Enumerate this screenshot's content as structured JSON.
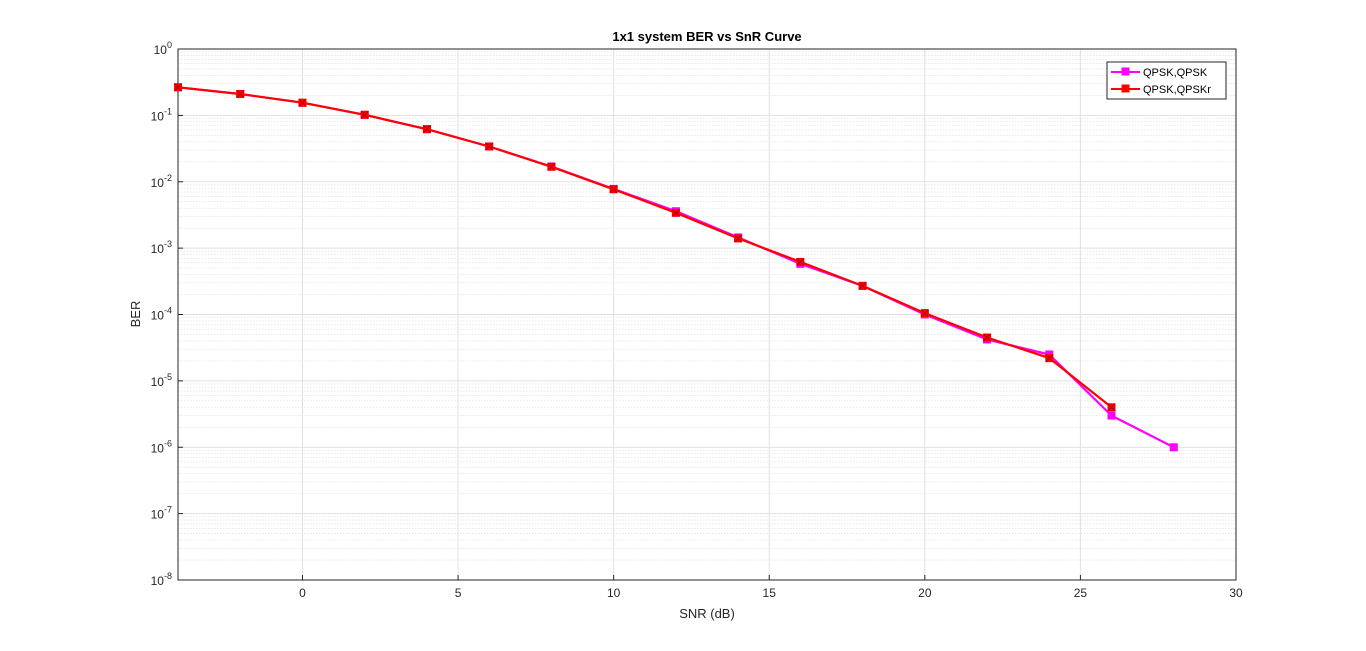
{
  "chart_data": {
    "type": "line",
    "title": "1x1 system BER vs SnR Curve",
    "xlabel": "SNR (dB)",
    "ylabel": "BER",
    "xlim": [
      -4,
      30
    ],
    "ylim": [
      1e-08,
      1
    ],
    "yscale": "log",
    "grid": true,
    "minor_grid": true,
    "legend_position": "top-right",
    "x_ticks": [
      "0",
      "5",
      "10",
      "15",
      "20",
      "25",
      "30"
    ],
    "y_ticks": [
      {
        "base": "10",
        "exp": "0"
      },
      {
        "base": "10",
        "exp": "-1"
      },
      {
        "base": "10",
        "exp": "-2"
      },
      {
        "base": "10",
        "exp": "-3"
      },
      {
        "base": "10",
        "exp": "-4"
      },
      {
        "base": "10",
        "exp": "-5"
      },
      {
        "base": "10",
        "exp": "-6"
      },
      {
        "base": "10",
        "exp": "-7"
      },
      {
        "base": "10",
        "exp": "-8"
      }
    ],
    "series": [
      {
        "name": "QPSK,QPSK",
        "color": "#ff00ff",
        "x": [
          -4,
          -2,
          0,
          2,
          4,
          6,
          8,
          10,
          12,
          14,
          16,
          18,
          20,
          22,
          24,
          26,
          28
        ],
        "y": [
          0.265,
          0.21,
          0.155,
          0.102,
          0.062,
          0.034,
          0.017,
          0.0078,
          0.0036,
          0.00145,
          0.00058,
          0.00027,
          0.0001,
          4.2e-05,
          2.5e-05,
          3e-06,
          1e-06
        ]
      },
      {
        "name": "QPSK,QPSKr",
        "color": "#ff0000",
        "x": [
          -4,
          -2,
          0,
          2,
          4,
          6,
          8,
          10,
          12,
          14,
          16,
          18,
          20,
          22,
          24,
          26
        ],
        "y": [
          0.265,
          0.21,
          0.155,
          0.102,
          0.062,
          0.034,
          0.0168,
          0.0077,
          0.0034,
          0.0014,
          0.00062,
          0.00027,
          0.000105,
          4.5e-05,
          2.2e-05,
          4e-06
        ]
      }
    ]
  }
}
